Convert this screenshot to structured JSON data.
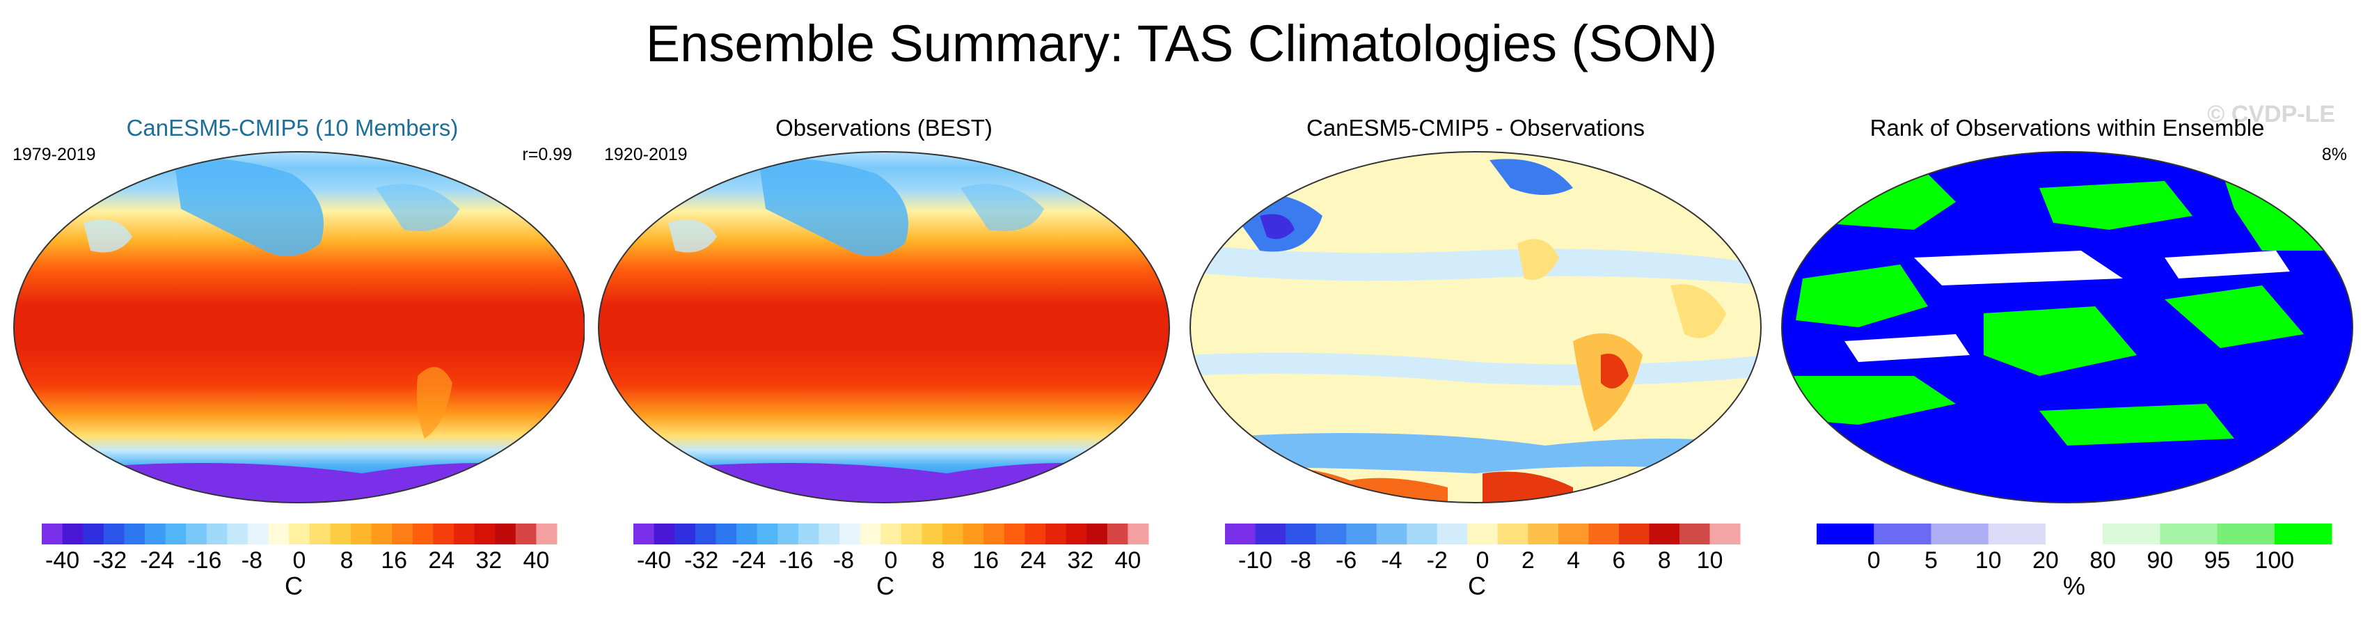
{
  "figure": {
    "title": "Ensemble Summary: TAS Climatologies (SON)",
    "watermark": "© CVDP-LE"
  },
  "colors": {
    "temp_palette": [
      "#7a30e8",
      "#4b17d6",
      "#2f2fe0",
      "#2a55e8",
      "#2d78f0",
      "#3c9bf5",
      "#52b5f7",
      "#78c8f9",
      "#a0d9fa",
      "#c5e9fb",
      "#e6f5fb",
      "#fffbd8",
      "#fff1a0",
      "#ffe070",
      "#ffcc45",
      "#ffb52a",
      "#ff9a1c",
      "#ff7d14",
      "#ff5e0e",
      "#f63e0a",
      "#e82408",
      "#d61106",
      "#c00a0a",
      "#d84545",
      "#f4a0a0"
    ],
    "bias_palette": [
      "#7a30e8",
      "#3d2ee0",
      "#2f55e8",
      "#3a7cf0",
      "#4f9cf4",
      "#74bdf7",
      "#a6d8fa",
      "#d2ecfb",
      "#fff7c0",
      "#ffe07a",
      "#ffc04a",
      "#ff9a2a",
      "#f96a18",
      "#e8380d",
      "#c40d08",
      "#d04a48",
      "#f4a6a6"
    ],
    "rank_palette": [
      "#0000ff",
      "#6a6af5",
      "#aeaef5",
      "#dcdcf8",
      "#ffffff",
      "#dafada",
      "#a6f5a6",
      "#78f078",
      "#00ff00"
    ]
  },
  "panels": [
    {
      "title": "CanESM5-CMIP5 (10 Members)",
      "title_color": "#1d6f9a",
      "period": "1979-2019",
      "stat": "r=0.99",
      "colorbar": {
        "unit": "C",
        "ticks": [
          "-40",
          "-32",
          "-24",
          "-16",
          "-8",
          "0",
          "8",
          "16",
          "24",
          "32",
          "40"
        ]
      }
    },
    {
      "title": "Observations (BEST)",
      "title_color": "#000000",
      "period": "1920-2019",
      "stat": "",
      "colorbar": {
        "unit": "C",
        "ticks": [
          "-40",
          "-32",
          "-24",
          "-16",
          "-8",
          "0",
          "8",
          "16",
          "24",
          "32",
          "40"
        ]
      }
    },
    {
      "title": "CanESM5-CMIP5 - Observations",
      "title_color": "#000000",
      "period": "",
      "stat": "",
      "colorbar": {
        "unit": "C",
        "ticks": [
          "-10",
          "-8",
          "-6",
          "-4",
          "-2",
          "0",
          "2",
          "4",
          "6",
          "8",
          "10"
        ]
      }
    },
    {
      "title": "Rank of Observations within Ensemble",
      "title_color": "#000000",
      "period": "",
      "stat": "8%",
      "colorbar": {
        "unit": "%",
        "ticks": [
          "0",
          "5",
          "10",
          "20",
          "80",
          "90",
          "95",
          "100"
        ]
      }
    }
  ],
  "chart_data": [
    {
      "type": "heatmap",
      "title": "CanESM5-CMIP5 (10 Members)",
      "variable": "TAS climatology (SON)",
      "period": "1979-2019",
      "pattern_correlation": 0.99,
      "colorbar_unit": "C",
      "colorbar_range": [
        -40,
        40
      ],
      "colorbar_ticks": [
        -40,
        -32,
        -24,
        -16,
        -8,
        0,
        8,
        16,
        24,
        32,
        40
      ],
      "description_values": {
        "tropics": 27,
        "midlatitudes": 12,
        "arctic": -12,
        "antarctica": -40
      }
    },
    {
      "type": "heatmap",
      "title": "Observations (BEST)",
      "variable": "TAS climatology (SON)",
      "period": "1920-2019",
      "colorbar_unit": "C",
      "colorbar_range": [
        -40,
        40
      ],
      "colorbar_ticks": [
        -40,
        -32,
        -24,
        -16,
        -8,
        0,
        8,
        16,
        24,
        32,
        40
      ],
      "description_values": {
        "tropics": 27,
        "midlatitudes": 12,
        "arctic": -14,
        "antarctica": -40
      }
    },
    {
      "type": "heatmap",
      "title": "CanESM5-CMIP5 - Observations",
      "variable": "TAS difference (SON)",
      "colorbar_unit": "C",
      "colorbar_range": [
        -10,
        10
      ],
      "colorbar_ticks": [
        -10,
        -8,
        -6,
        -4,
        -2,
        0,
        2,
        4,
        6,
        8,
        10
      ]
    },
    {
      "type": "heatmap",
      "title": "Rank of Observations within Ensemble",
      "colorbar_unit": "%",
      "colorbar_ticks": [
        0,
        5,
        10,
        20,
        80,
        90,
        95,
        100
      ],
      "percent_area_stat": 8
    }
  ]
}
